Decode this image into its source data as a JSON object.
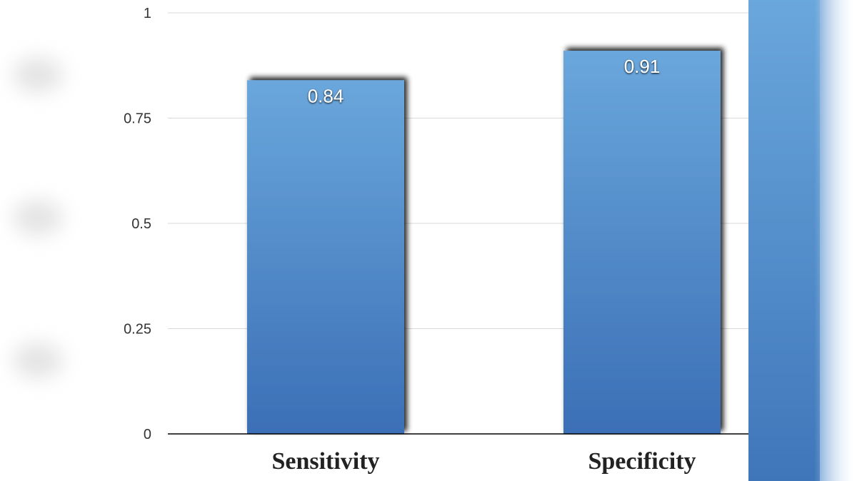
{
  "chart_data": {
    "type": "bar",
    "categories": [
      "Sensitivity",
      "Specificity"
    ],
    "values": [
      0.84,
      0.91
    ],
    "value_labels": [
      "0.84",
      "0.91"
    ],
    "ylim": [
      0,
      1
    ],
    "yticks": [
      0,
      0.25,
      0.5,
      0.75,
      1
    ],
    "ytick_labels": [
      "0",
      "0.25",
      "0.5",
      "0.75",
      "1"
    ],
    "grid": true,
    "bar_color_top": "#6aa7dc",
    "bar_color_bottom": "#3b6fb6"
  }
}
